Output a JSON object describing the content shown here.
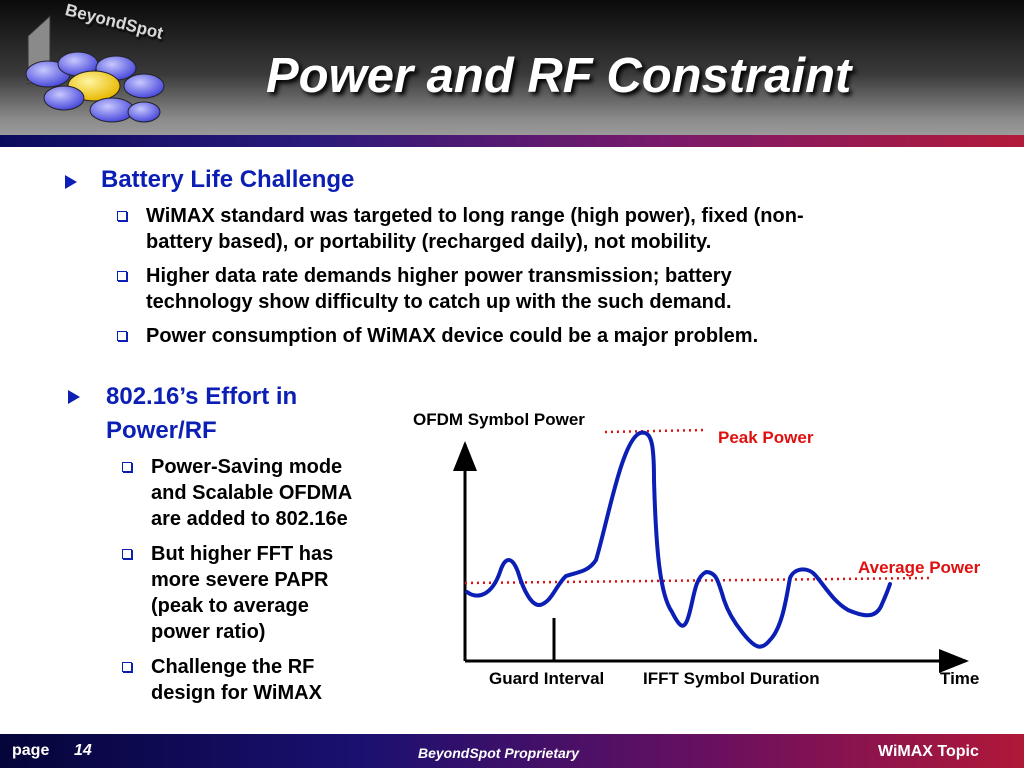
{
  "header": {
    "title": "Power and RF Constraint",
    "logo_text": "BeyondSpot"
  },
  "section1": {
    "heading": "Battery Life Challenge",
    "bullets": [
      {
        "line1": "WiMAX standard was targeted to long range (high power), fixed (non-",
        "line2": "battery based), or portability (recharged daily), not mobility."
      },
      {
        "line1": "Higher data rate demands higher power transmission; battery",
        "line2": "technology show difficulty to catch up with the such demand."
      },
      {
        "line1": "Power consumption of WiMAX device could be a major problem."
      }
    ]
  },
  "section2": {
    "heading_line1": "802.16’s Effort in",
    "heading_line2": "Power/RF",
    "bullets": [
      {
        "lines": [
          "Power-Saving mode",
          "and Scalable OFDMA",
          "are added to 802.16e"
        ]
      },
      {
        "lines": [
          "But higher FFT has",
          "more severe PAPR",
          "(peak to average",
          "power ratio)"
        ]
      },
      {
        "lines": [
          "Challenge the RF",
          "design for WiMAX"
        ]
      }
    ]
  },
  "diagram": {
    "y_label": "OFDM Symbol Power",
    "peak_label": "Peak Power",
    "average_label": "Average Power",
    "guard_label": "Guard Interval",
    "ifft_label": "IFFT Symbol Duration",
    "time_label": "Time",
    "colors": {
      "signal": "#0b1fb5",
      "reference": "#e01010",
      "label_red": "#e01010"
    }
  },
  "footer": {
    "page_label": "page",
    "page_number": "14",
    "proprietary": "BeyondSpot Proprietary",
    "topic": "WiMAX Topic"
  }
}
